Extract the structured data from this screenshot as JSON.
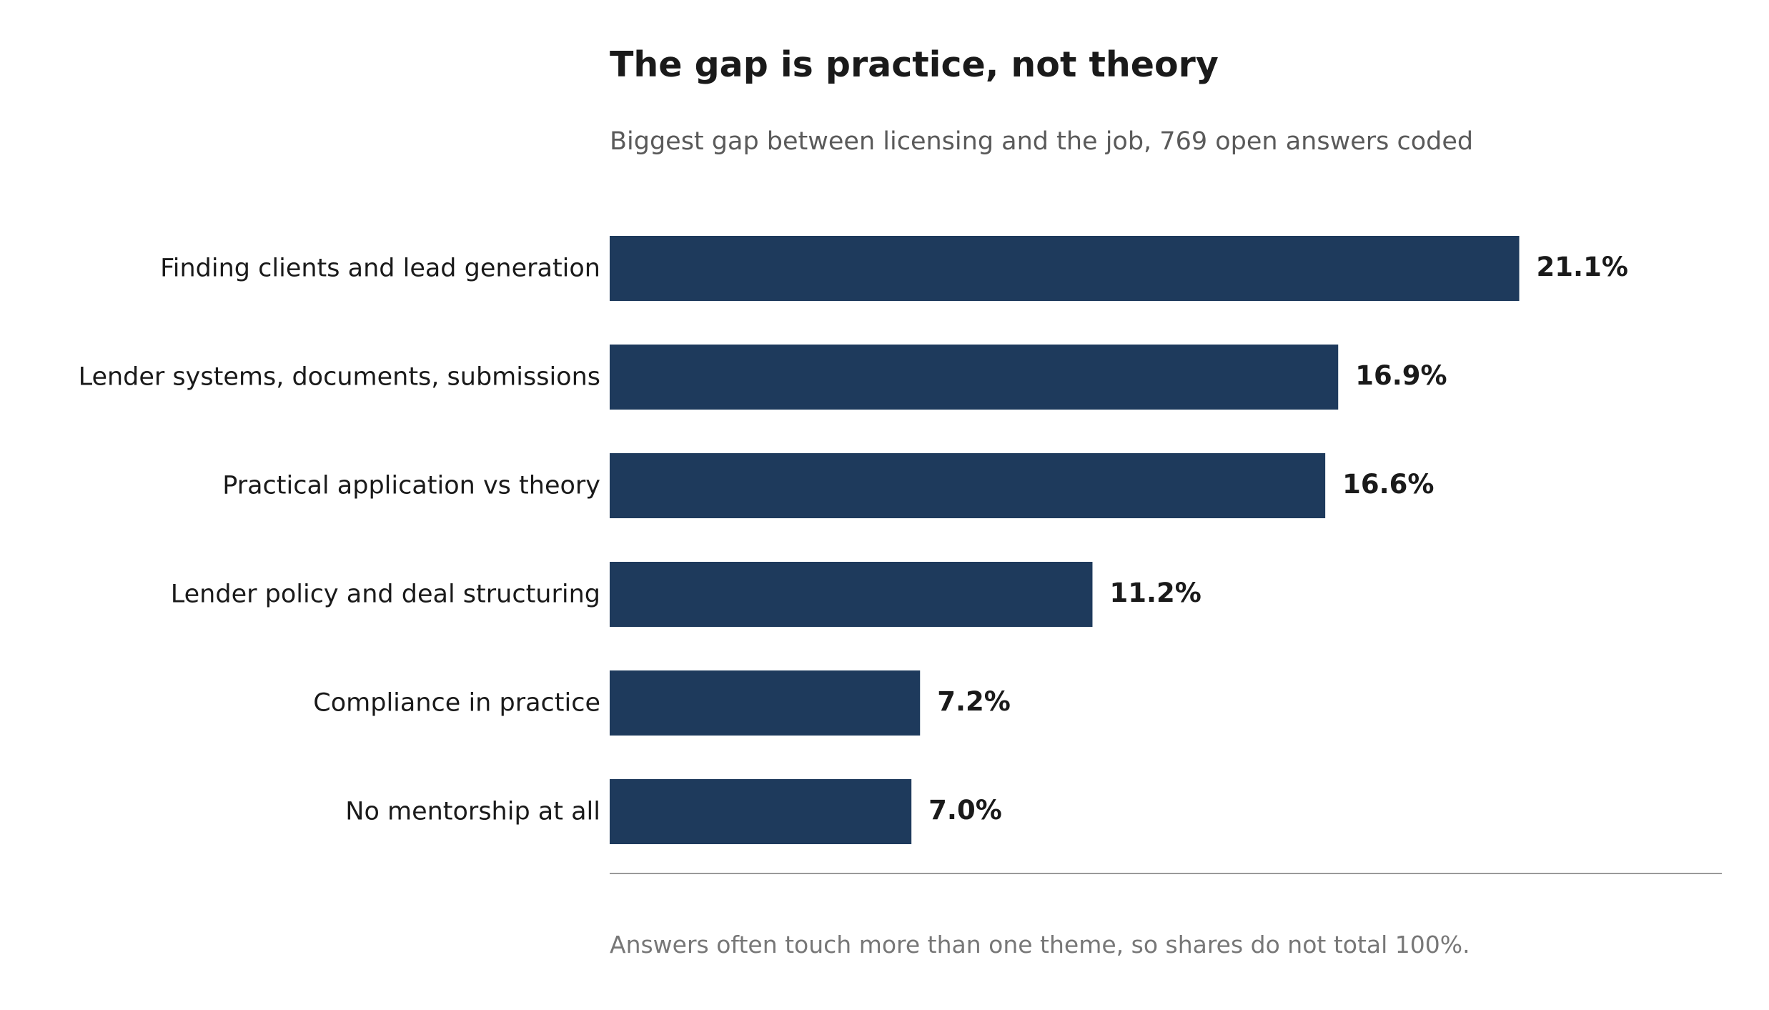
{
  "chart_data": {
    "type": "bar",
    "orientation": "horizontal",
    "title": "The gap is practice, not theory",
    "subtitle": "Biggest gap between licensing and the job, 769 open answers coded",
    "note": "Answers often touch more than one theme, so shares do not total 100%.",
    "xlabel": "",
    "ylabel": "",
    "categories": [
      "Finding clients and lead generation",
      "Lender systems, documents, submissions",
      "Practical application vs theory",
      "Lender policy and deal structuring",
      "Compliance in practice",
      "No mentorship at all"
    ],
    "values": [
      21.1,
      16.9,
      16.6,
      11.2,
      7.2,
      7.0
    ],
    "value_labels": [
      "21.1%",
      "16.9%",
      "16.6%",
      "11.2%",
      "7.2%",
      "7.0%"
    ],
    "xlim": [
      0,
      25.8
    ],
    "grid": false,
    "legend": "none",
    "colors": {
      "bar": "#1e3a5c",
      "baseline": "#9a9a9a",
      "label_text": "#1a1a1a",
      "value_text": "#1a1a1a"
    }
  }
}
